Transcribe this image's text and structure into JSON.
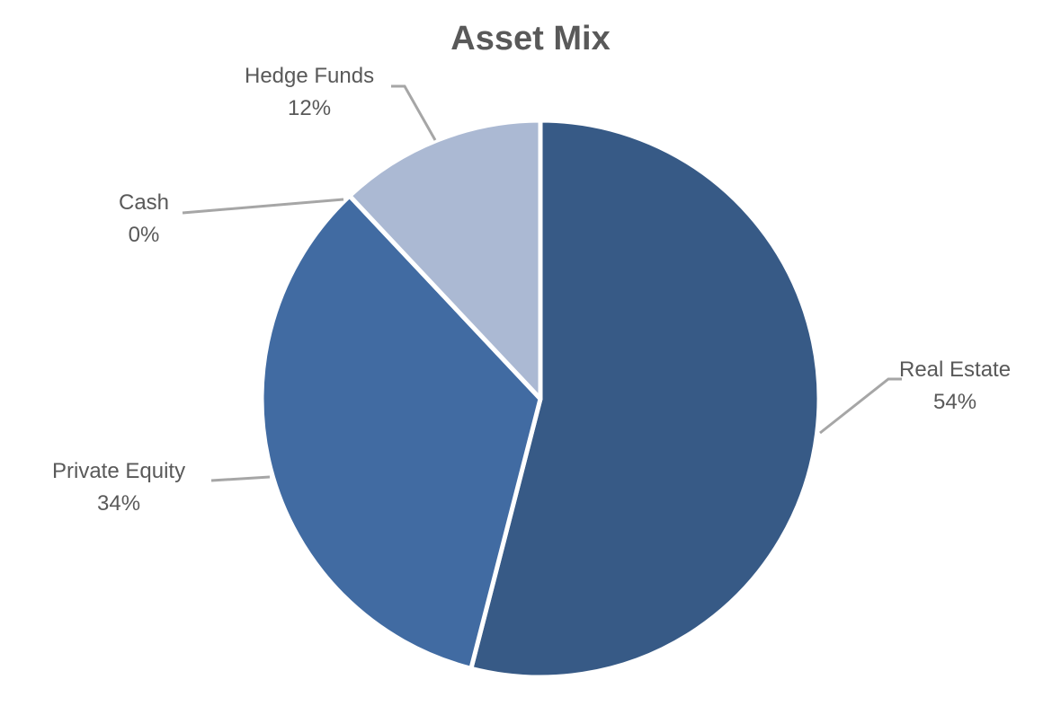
{
  "chart_data": {
    "type": "pie",
    "title": "Asset Mix",
    "categories": [
      "Real Estate",
      "Private Equity",
      "Cash",
      "Hedge Funds"
    ],
    "values": [
      54,
      34,
      0,
      12
    ],
    "labels": [
      "54%",
      "34%",
      "0%",
      "12%"
    ],
    "colors": [
      "#375A86",
      "#416BA2",
      "#FFFFFF",
      "#ABB9D3"
    ],
    "legend": "none",
    "data_labels": "category name and percentage with leader lines"
  }
}
